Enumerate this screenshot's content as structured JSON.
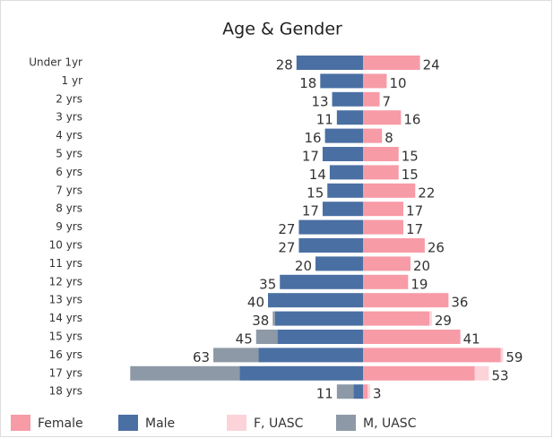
{
  "chart_data": {
    "type": "pyramid",
    "title": "Age & Gender",
    "categories": [
      "Under 1yr",
      "1 yr",
      "2 yrs",
      "3 yrs",
      "4 yrs",
      "5 yrs",
      "6 yrs",
      "7 yrs",
      "8 yrs",
      "9 yrs",
      "10 yrs",
      "11 yrs",
      "12 yrs",
      "13 yrs",
      "14 yrs",
      "15 yrs",
      "16 yrs",
      "17 yrs",
      "18 yrs"
    ],
    "series": [
      {
        "name": "Female",
        "side": "right",
        "color": "#f79ba7",
        "values": [
          24,
          10,
          7,
          16,
          8,
          15,
          15,
          22,
          17,
          17,
          26,
          20,
          19,
          36,
          28,
          41,
          58,
          47,
          2
        ]
      },
      {
        "name": "Male",
        "side": "left",
        "color": "#4a6fa3",
        "values": [
          28,
          18,
          13,
          11,
          16,
          17,
          14,
          15,
          17,
          27,
          27,
          20,
          35,
          40,
          37,
          36,
          44,
          52,
          4
        ]
      },
      {
        "name": "F, UASC",
        "side": "right",
        "color": "#fbd3d9",
        "values": [
          0,
          0,
          0,
          0,
          0,
          0,
          0,
          0,
          0,
          0,
          0,
          0,
          0,
          0,
          1,
          0,
          1,
          6,
          1
        ]
      },
      {
        "name": "M, UASC",
        "side": "left",
        "color": "#8d99a6",
        "values": [
          0,
          0,
          0,
          0,
          0,
          0,
          0,
          0,
          0,
          0,
          0,
          0,
          0,
          0,
          1,
          9,
          19,
          46,
          7
        ]
      }
    ],
    "totals": {
      "right": [
        24,
        10,
        7,
        16,
        8,
        15,
        15,
        22,
        17,
        17,
        26,
        20,
        19,
        36,
        29,
        41,
        59,
        53,
        3
      ],
      "left": [
        28,
        18,
        13,
        11,
        16,
        17,
        14,
        15,
        17,
        27,
        27,
        20,
        35,
        40,
        38,
        45,
        63,
        null,
        11
      ]
    }
  }
}
